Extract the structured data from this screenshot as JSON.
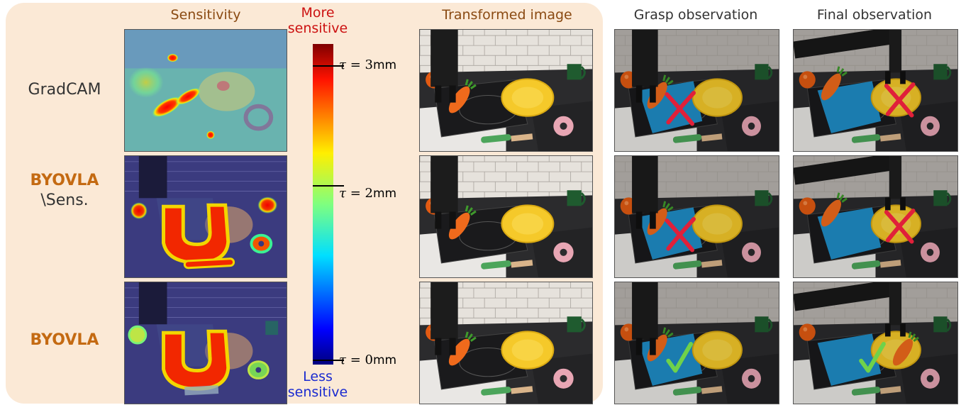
{
  "headers": {
    "sensitivity": "Sensitivity",
    "transformed": "Transformed image",
    "grasp": "Grasp observation",
    "final": "Final observation"
  },
  "rows": [
    {
      "label_accent": "",
      "label_plain": "GradCAM"
    },
    {
      "label_accent": "BYOVLA",
      "label_plain": "\\Sens."
    },
    {
      "label_accent": "BYOVLA",
      "label_plain": ""
    }
  ],
  "colorbar": {
    "top_label_line1": "More",
    "top_label_line2": "sensitive",
    "bottom_label_line1": "Less",
    "bottom_label_line2": "sensitive",
    "ticks": [
      {
        "tau": "τ",
        "eq": " = 3",
        "unit": "mm"
      },
      {
        "tau": "τ",
        "eq": " = 2",
        "unit": "mm"
      },
      {
        "tau": "τ",
        "eq": " = 0",
        "unit": "mm"
      }
    ]
  },
  "outcomes": {
    "grasp": [
      "fail",
      "fail",
      "success"
    ],
    "final": [
      "fail",
      "fail",
      "success"
    ]
  },
  "colors": {
    "panel_bg": "#fbe9d6",
    "header_brown": "#8a4a12",
    "accent_orange": "#c46a12",
    "fail_red": "#e0203a",
    "success_green": "#6fd24a",
    "more_red": "#cc1111",
    "less_blue": "#1a2ad0"
  }
}
